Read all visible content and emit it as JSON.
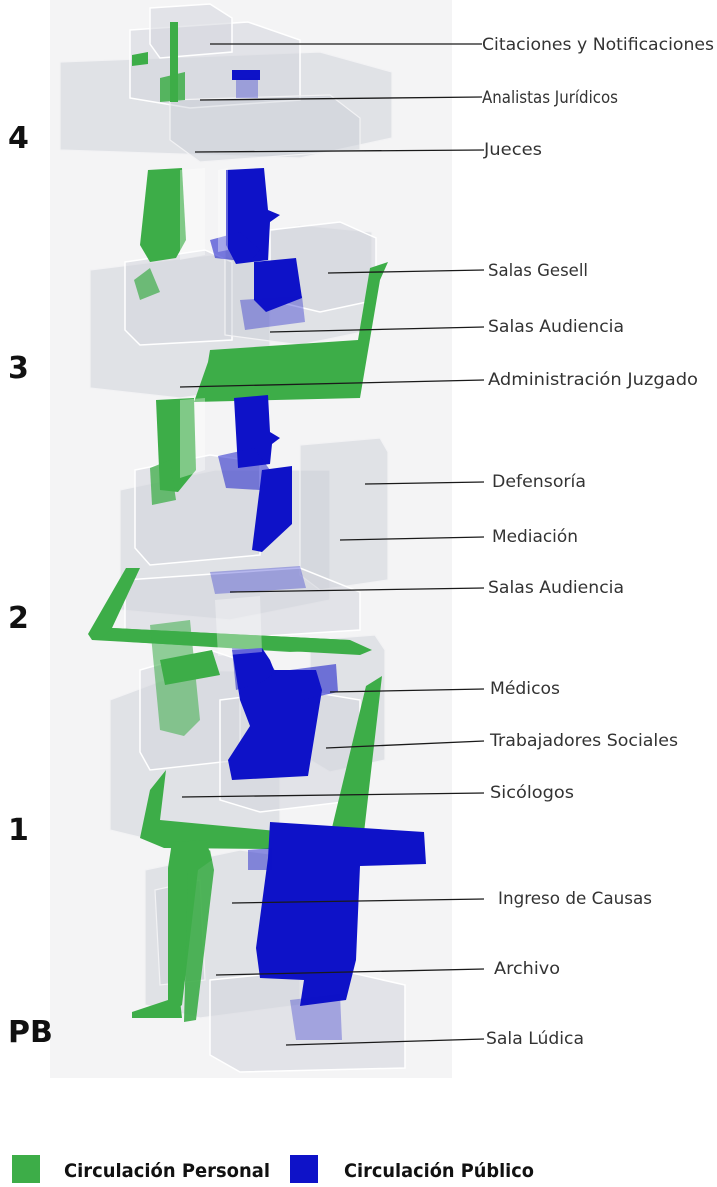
{
  "levels": [
    {
      "id": "4",
      "label": "4"
    },
    {
      "id": "3",
      "label": "3"
    },
    {
      "id": "2",
      "label": "2"
    },
    {
      "id": "1",
      "label": "1"
    },
    {
      "id": "pb",
      "label": "PB"
    }
  ],
  "labels": [
    {
      "id": "citaciones",
      "text": "Citaciones y Notificaciones"
    },
    {
      "id": "analistas",
      "text": "Analistas Jurídicos"
    },
    {
      "id": "jueces",
      "text": "Jueces"
    },
    {
      "id": "salas-gesell",
      "text": "Salas Gesell"
    },
    {
      "id": "salas-audiencia-3",
      "text": "Salas Audiencia"
    },
    {
      "id": "administracion",
      "text": "Administración Juzgado"
    },
    {
      "id": "defensoria",
      "text": "Defensoría"
    },
    {
      "id": "mediacion",
      "text": "Mediación"
    },
    {
      "id": "salas-audiencia-2",
      "text": "Salas Audiencia"
    },
    {
      "id": "medicos",
      "text": "Médicos"
    },
    {
      "id": "trabajadores",
      "text": "Trabajadores Sociales"
    },
    {
      "id": "sicologos",
      "text": "Sicólogos"
    },
    {
      "id": "ingreso",
      "text": "Ingreso de Causas"
    },
    {
      "id": "archivo",
      "text": "Archivo"
    },
    {
      "id": "sala-ludica",
      "text": "Sala Lúdica"
    }
  ],
  "legend": [
    {
      "id": "personal",
      "label": "Circulación Personal",
      "color": "#3dad48"
    },
    {
      "id": "publico",
      "label": "Circulación Público",
      "color": "#0e12c8"
    }
  ]
}
